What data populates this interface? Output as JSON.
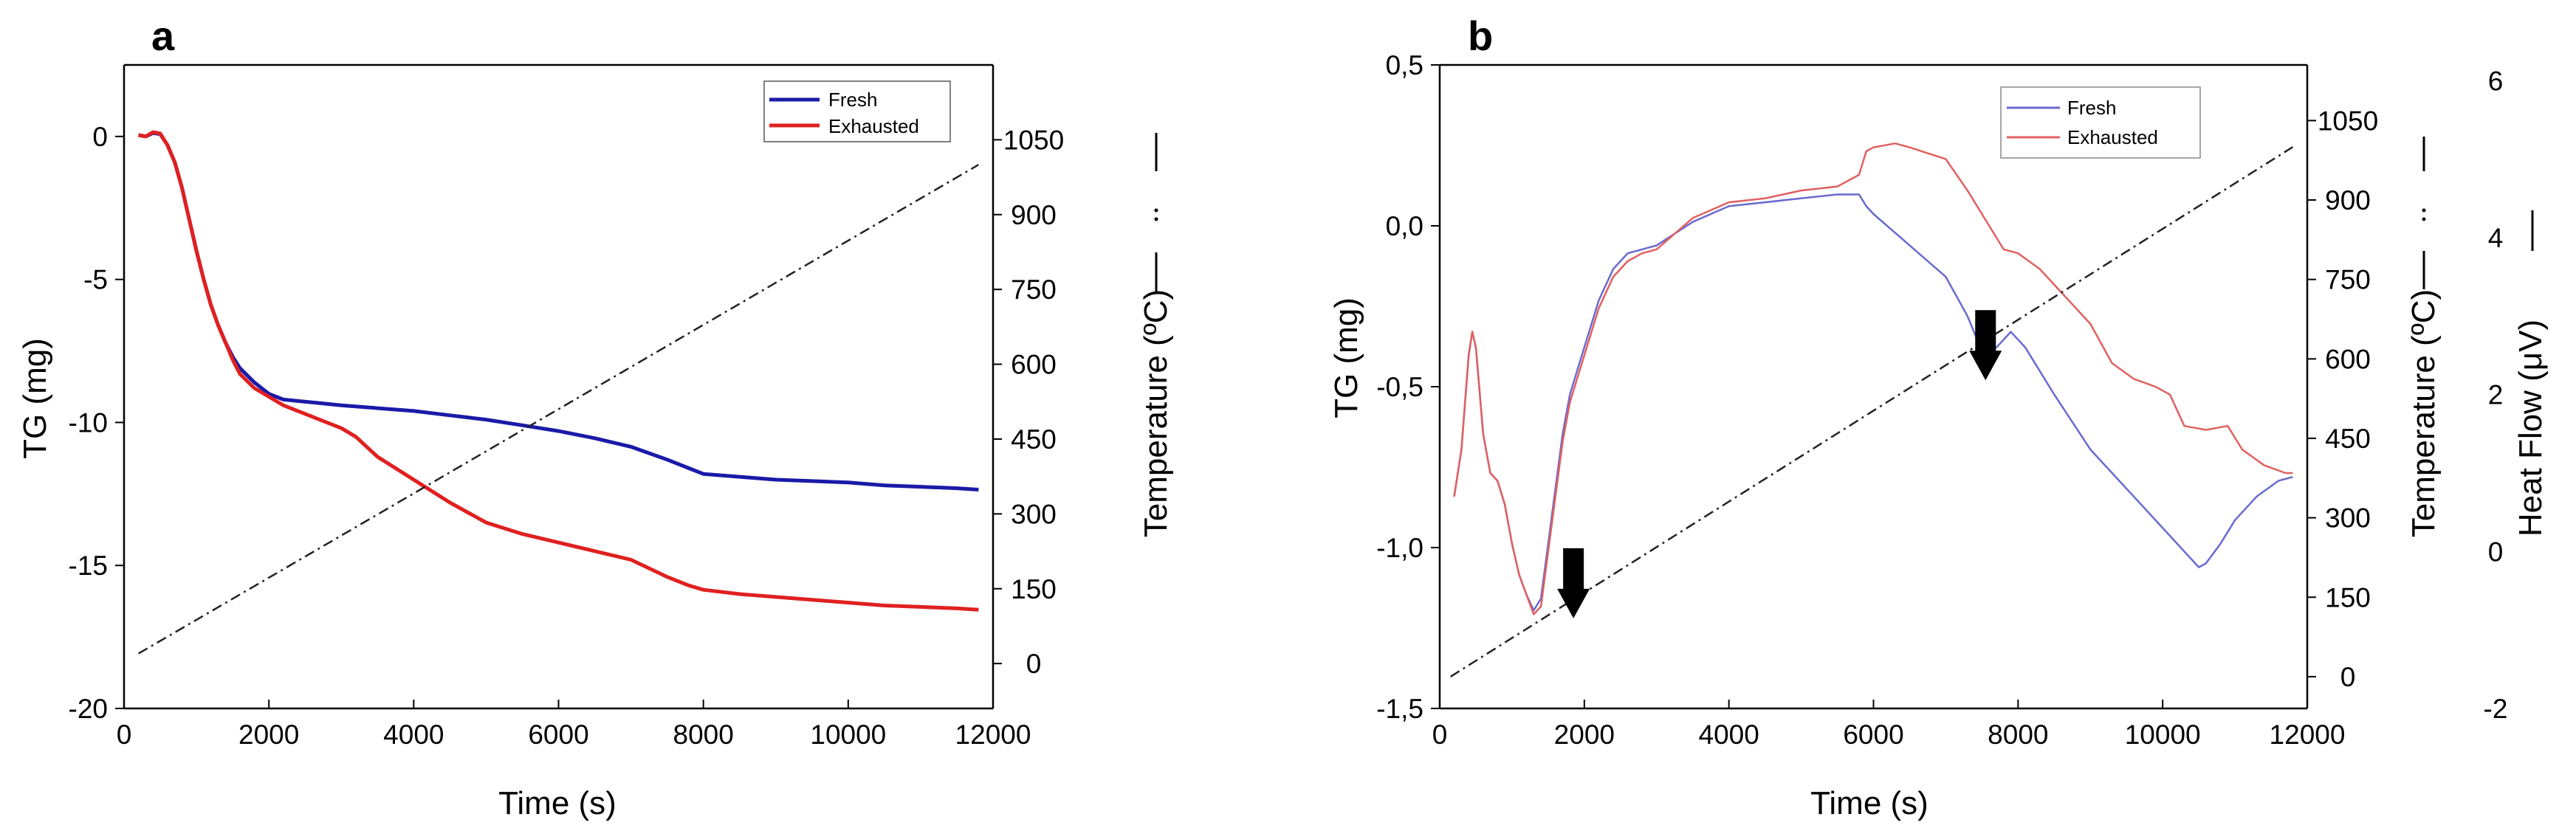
{
  "chart_data": [
    {
      "panel": "a",
      "type": "line",
      "xlabel": "Time (s)",
      "ylabel": "TG (mg)",
      "y2label": "Temperature (ºC)",
      "xlim": [
        0,
        12000
      ],
      "ylim": [
        -20,
        2.5
      ],
      "y2lim": [
        -90,
        1200
      ],
      "xticks": [
        "0",
        "2000",
        "4000",
        "6000",
        "8000",
        "10000",
        "12000"
      ],
      "yticks": [
        "-20",
        "-15",
        "-10",
        "-5",
        "0"
      ],
      "y2ticks": [
        "0",
        "150",
        "300",
        "450",
        "600",
        "750",
        "900",
        "1050"
      ],
      "legend": [
        "Fresh",
        "Exhausted"
      ],
      "legend_position": "top-right",
      "colors": {
        "Fresh": "#1a1aa8",
        "Exhausted": "#e02020",
        "Temperature": "#222222"
      },
      "series": [
        {
          "name": "Fresh",
          "axis": "left",
          "x": [
            200,
            300,
            400,
            500,
            600,
            700,
            800,
            900,
            1000,
            1100,
            1200,
            1300,
            1400,
            1500,
            1600,
            1800,
            2000,
            2200,
            2400,
            2600,
            3000,
            3500,
            4000,
            4500,
            5000,
            5500,
            6000,
            6500,
            7000,
            7500,
            7800,
            8000,
            8500,
            9000,
            9500,
            10000,
            10500,
            11000,
            11500,
            11800
          ],
          "values": [
            0.05,
            0.0,
            0.12,
            0.08,
            -0.3,
            -0.9,
            -1.8,
            -2.9,
            -4.0,
            -5.0,
            -5.9,
            -6.6,
            -7.2,
            -7.7,
            -8.1,
            -8.6,
            -9.0,
            -9.2,
            -9.25,
            -9.3,
            -9.4,
            -9.5,
            -9.6,
            -9.75,
            -9.9,
            -10.1,
            -10.3,
            -10.55,
            -10.85,
            -11.3,
            -11.6,
            -11.8,
            -11.9,
            -12.0,
            -12.05,
            -12.1,
            -12.2,
            -12.25,
            -12.3,
            -12.35
          ]
        },
        {
          "name": "Exhausted",
          "axis": "left",
          "x": [
            200,
            300,
            400,
            500,
            600,
            700,
            800,
            900,
            1000,
            1100,
            1200,
            1300,
            1400,
            1500,
            1600,
            1800,
            2000,
            2200,
            2400,
            2600,
            2800,
            3000,
            3200,
            3500,
            4000,
            4500,
            5000,
            5500,
            6000,
            6500,
            7000,
            7500,
            7800,
            8000,
            8500,
            9000,
            9500,
            10000,
            10500,
            11000,
            11500,
            11800
          ],
          "values": [
            0.05,
            0.0,
            0.15,
            0.1,
            -0.3,
            -0.9,
            -1.8,
            -2.9,
            -4.0,
            -5.0,
            -5.9,
            -6.6,
            -7.2,
            -7.8,
            -8.3,
            -8.8,
            -9.1,
            -9.4,
            -9.6,
            -9.8,
            -10.0,
            -10.2,
            -10.5,
            -11.2,
            -12.0,
            -12.8,
            -13.5,
            -13.9,
            -14.2,
            -14.5,
            -14.8,
            -15.4,
            -15.7,
            -15.85,
            -16.0,
            -16.1,
            -16.2,
            -16.3,
            -16.4,
            -16.45,
            -16.5,
            -16.55
          ]
        },
        {
          "name": "Temperature",
          "axis": "right",
          "style": "dash-dot",
          "x": [
            200,
            11800
          ],
          "values": [
            20,
            1000
          ]
        }
      ]
    },
    {
      "panel": "b",
      "type": "line",
      "xlabel": "Time (s)",
      "ylabel": "TG (mg)",
      "y2label": "Temperature (ºC)",
      "y3label": "Heat Flow (μV)",
      "xlim": [
        0,
        12000
      ],
      "ylim": [
        -1.5,
        0.5
      ],
      "y2lim": [
        -60,
        1155
      ],
      "y3lim": [
        -2,
        6.2
      ],
      "xticks": [
        "0",
        "2000",
        "4000",
        "6000",
        "8000",
        "10000",
        "12000"
      ],
      "yticks": [
        "-1,5",
        "-1,0",
        "-0,5",
        "0,0",
        "0,5"
      ],
      "y2ticks": [
        "0",
        "150",
        "300",
        "450",
        "600",
        "750",
        "900",
        "1050"
      ],
      "y3ticks": [
        "-2",
        "0",
        "2",
        "4",
        "6"
      ],
      "legend": [
        "Fresh",
        "Exhausted"
      ],
      "legend_position": "top-right",
      "colors": {
        "Fresh": "#6a6ad0",
        "Exhausted": "#e06060",
        "Temperature": "#222222"
      },
      "annotations": [
        {
          "type": "arrow-down",
          "x": 1850,
          "y": -1.22
        },
        {
          "type": "arrow-down",
          "x": 7550,
          "y": -0.48
        }
      ],
      "series": [
        {
          "name": "Fresh",
          "axis": "heatflow",
          "x": [
            200,
            300,
            400,
            450,
            500,
            600,
            700,
            800,
            900,
            1000,
            1100,
            1200,
            1300,
            1400,
            1500,
            1600,
            1700,
            1800,
            1900,
            2000,
            2200,
            2400,
            2600,
            2800,
            3000,
            3500,
            4000,
            4500,
            5000,
            5500,
            5800,
            5900,
            6000,
            6500,
            7000,
            7300,
            7500,
            7700,
            7900,
            8100,
            8500,
            9000,
            9500,
            10000,
            10300,
            10500,
            10600,
            10800,
            11000,
            11300,
            11600,
            11800
          ],
          "values": [
            0.7,
            1.3,
            2.5,
            2.8,
            2.6,
            1.5,
            1.0,
            0.9,
            0.6,
            0.1,
            -0.3,
            -0.55,
            -0.75,
            -0.6,
            0.1,
            0.8,
            1.5,
            2.0,
            2.3,
            2.6,
            3.2,
            3.6,
            3.8,
            3.85,
            3.9,
            4.2,
            4.4,
            4.45,
            4.5,
            4.55,
            4.55,
            4.4,
            4.3,
            3.9,
            3.5,
            3.0,
            2.55,
            2.6,
            2.8,
            2.6,
            2.0,
            1.3,
            0.8,
            0.3,
            0.0,
            -0.2,
            -0.15,
            0.1,
            0.4,
            0.7,
            0.9,
            0.95
          ]
        },
        {
          "name": "Exhausted",
          "axis": "heatflow",
          "x": [
            200,
            300,
            400,
            450,
            500,
            600,
            700,
            800,
            900,
            1000,
            1100,
            1200,
            1300,
            1400,
            1500,
            1600,
            1700,
            1800,
            1900,
            2000,
            2200,
            2400,
            2600,
            2800,
            3000,
            3500,
            4000,
            4500,
            5000,
            5500,
            5800,
            5900,
            6000,
            6300,
            6500,
            7000,
            7300,
            7500,
            7800,
            8000,
            8300,
            8600,
            9000,
            9300,
            9600,
            9900,
            10100,
            10300,
            10600,
            10900,
            11100,
            11400,
            11700,
            11800
          ],
          "values": [
            0.7,
            1.3,
            2.5,
            2.8,
            2.6,
            1.5,
            1.0,
            0.9,
            0.6,
            0.1,
            -0.3,
            -0.55,
            -0.8,
            -0.7,
            0.0,
            0.7,
            1.4,
            1.9,
            2.2,
            2.5,
            3.1,
            3.5,
            3.7,
            3.8,
            3.85,
            4.25,
            4.45,
            4.5,
            4.6,
            4.65,
            4.8,
            5.1,
            5.15,
            5.2,
            5.15,
            5.0,
            4.6,
            4.3,
            3.85,
            3.8,
            3.6,
            3.3,
            2.9,
            2.4,
            2.2,
            2.1,
            2.0,
            1.6,
            1.55,
            1.6,
            1.3,
            1.1,
            1.0,
            1.0
          ]
        },
        {
          "name": "Temperature",
          "axis": "right",
          "style": "dash-dot",
          "x": [
            150,
            11800
          ],
          "values": [
            0,
            1000
          ]
        }
      ]
    }
  ]
}
